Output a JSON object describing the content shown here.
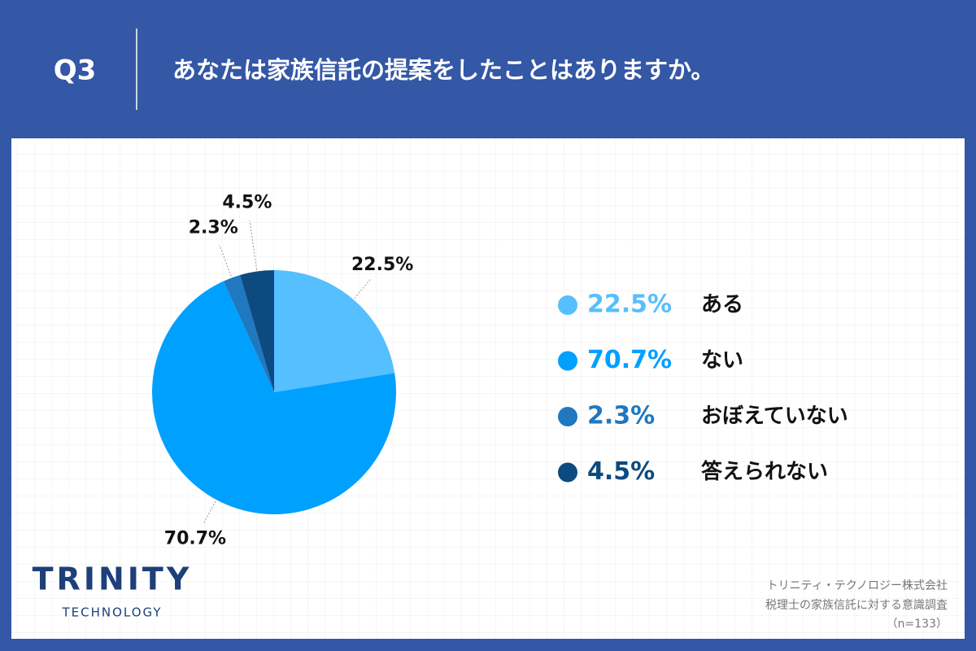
{
  "header": {
    "number": "Q3",
    "title": "あなたは家族信託の提案をしたことはありますか。"
  },
  "chart_data": {
    "type": "pie",
    "categories": [
      "ある",
      "ない",
      "おぼえていない",
      "答えられない"
    ],
    "values": [
      22.5,
      70.7,
      2.3,
      4.5
    ],
    "value_labels": [
      "22.5%",
      "70.7%",
      "2.3%",
      "4.5%"
    ],
    "colors": [
      "#55bfff",
      "#00a0ff",
      "#1f78c0",
      "#0d4a80"
    ],
    "legend": "right"
  },
  "logo": {
    "name": "TRINITY",
    "sub": "TECHNOLOGY"
  },
  "footer": {
    "company": "トリニティ・テクノロジー株式会社",
    "survey": "税理士の家族信託に対する意識調査",
    "sample": "（n=133）"
  }
}
